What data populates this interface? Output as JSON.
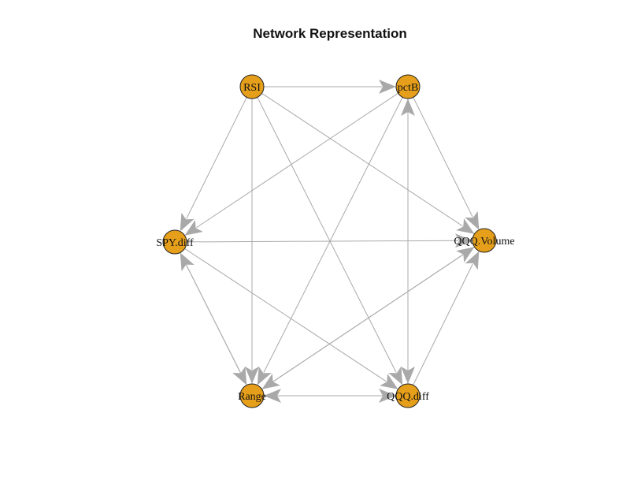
{
  "title": "Network Representation",
  "colors": {
    "node_fill": "#E69F1A",
    "node_border": "#222222",
    "edge": "#A9A9A9",
    "text": "#111111",
    "background": "#FFFFFF"
  },
  "nodes": [
    {
      "id": "RSI",
      "label": "RSI"
    },
    {
      "id": "pctB",
      "label": "pctB"
    },
    {
      "id": "QQQ.Volume",
      "label": "QQQ.Volume"
    },
    {
      "id": "QQQ.diff",
      "label": "QQQ.diff"
    },
    {
      "id": "Range",
      "label": "Range"
    },
    {
      "id": "SPY.diff",
      "label": "SPY.diff"
    }
  ],
  "edges": [
    {
      "from": "RSI",
      "to": "pctB"
    },
    {
      "from": "RSI",
      "to": "SPY.diff"
    },
    {
      "from": "RSI",
      "to": "QQQ.Volume"
    },
    {
      "from": "RSI",
      "to": "Range"
    },
    {
      "from": "RSI",
      "to": "QQQ.diff"
    },
    {
      "from": "pctB",
      "to": "SPY.diff"
    },
    {
      "from": "pctB",
      "to": "QQQ.Volume"
    },
    {
      "from": "pctB",
      "to": "Range"
    },
    {
      "from": "pctB",
      "to": "QQQ.diff"
    },
    {
      "from": "QQQ.diff",
      "to": "pctB"
    },
    {
      "from": "SPY.diff",
      "to": "QQQ.Volume"
    },
    {
      "from": "SPY.diff",
      "to": "Range"
    },
    {
      "from": "SPY.diff",
      "to": "QQQ.diff"
    },
    {
      "from": "Range",
      "to": "SPY.diff"
    },
    {
      "from": "Range",
      "to": "QQQ.Volume"
    },
    {
      "from": "QQQ.Volume",
      "to": "Range"
    },
    {
      "from": "QQQ.diff",
      "to": "QQQ.Volume"
    },
    {
      "from": "QQQ.diff",
      "to": "Range"
    },
    {
      "from": "Range",
      "to": "QQQ.diff"
    }
  ]
}
